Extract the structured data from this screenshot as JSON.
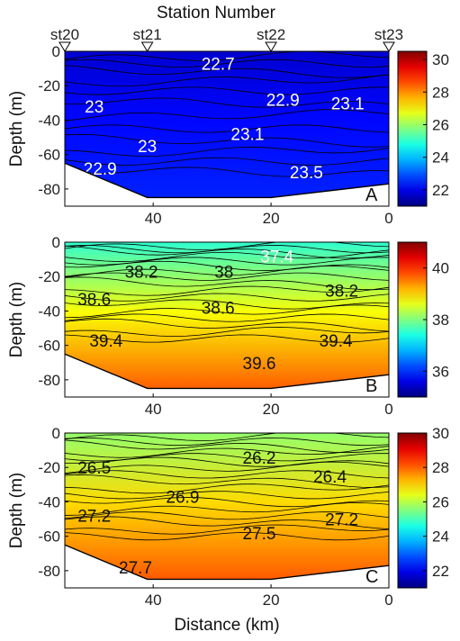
{
  "top_axis_label": "Station Number",
  "stations": [
    {
      "label": "st20",
      "distance": 55
    },
    {
      "label": "st21",
      "distance": 41
    },
    {
      "label": "st22",
      "distance": 20
    },
    {
      "label": "st23",
      "distance": 0
    }
  ],
  "xlabel": "Distance (km)",
  "chart_data": [
    {
      "type": "contour",
      "panel_label": "A",
      "ylabel": "Depth (m)",
      "xlim": [
        55,
        0
      ],
      "ylim": [
        -90,
        0
      ],
      "x_ticks": [
        40,
        20,
        0
      ],
      "y_ticks": [
        0,
        -20,
        -40,
        -60,
        -80
      ],
      "colorbar": {
        "min": 21,
        "max": 30.5,
        "ticks": [
          22,
          24,
          26,
          28,
          30
        ]
      },
      "bottom_profile": [
        [
          55,
          -65
        ],
        [
          41,
          -85
        ],
        [
          20,
          -85
        ],
        [
          0,
          -77
        ]
      ],
      "colorscale": "jet",
      "contour_labels": [
        {
          "text": "22.7",
          "x": 29,
          "y": -7,
          "color": "#ffffff"
        },
        {
          "text": "23",
          "x": 50,
          "y": -32,
          "color": "#ffffff"
        },
        {
          "text": "22.9",
          "x": 18,
          "y": -28,
          "color": "#ffffff"
        },
        {
          "text": "23.1",
          "x": 7,
          "y": -30,
          "color": "#ffffff"
        },
        {
          "text": "23.1",
          "x": 24,
          "y": -48,
          "color": "#ffffff"
        },
        {
          "text": "23",
          "x": 41,
          "y": -55,
          "color": "#ffffff"
        },
        {
          "text": "22.9",
          "x": 49,
          "y": -68,
          "color": "#ffffff"
        },
        {
          "text": "23.5",
          "x": 14,
          "y": -70,
          "color": "#ffffff"
        }
      ]
    },
    {
      "type": "contour",
      "panel_label": "B",
      "ylabel": "Depth (m)",
      "xlim": [
        55,
        0
      ],
      "ylim": [
        -90,
        0
      ],
      "x_ticks": [
        40,
        20,
        0
      ],
      "y_ticks": [
        0,
        -20,
        -40,
        -60,
        -80
      ],
      "colorbar": {
        "min": 35,
        "max": 41,
        "ticks": [
          36,
          38,
          40
        ]
      },
      "bottom_profile": [
        [
          55,
          -65
        ],
        [
          41,
          -85
        ],
        [
          20,
          -85
        ],
        [
          0,
          -77
        ]
      ],
      "colorscale": "jet",
      "contour_labels": [
        {
          "text": "37.4",
          "x": 19,
          "y": -8,
          "color": "#ffffff"
        },
        {
          "text": "38.2",
          "x": 42,
          "y": -17,
          "color": "#111111"
        },
        {
          "text": "38",
          "x": 28,
          "y": -17,
          "color": "#111111"
        },
        {
          "text": "38.2",
          "x": 8,
          "y": -28,
          "color": "#111111"
        },
        {
          "text": "38.6",
          "x": 50,
          "y": -33,
          "color": "#111111"
        },
        {
          "text": "38.6",
          "x": 29,
          "y": -38,
          "color": "#111111"
        },
        {
          "text": "39.4",
          "x": 48,
          "y": -57,
          "color": "#111111"
        },
        {
          "text": "39.4",
          "x": 9,
          "y": -57,
          "color": "#111111"
        },
        {
          "text": "39.6",
          "x": 22,
          "y": -70,
          "color": "#111111"
        }
      ]
    },
    {
      "type": "contour",
      "panel_label": "C",
      "ylabel": "Depth (m)",
      "xlim": [
        55,
        0
      ],
      "ylim": [
        -90,
        0
      ],
      "x_ticks": [
        40,
        20,
        0
      ],
      "y_ticks": [
        0,
        -20,
        -40,
        -60,
        -80
      ],
      "colorbar": {
        "min": 21,
        "max": 30,
        "ticks": [
          22,
          24,
          26,
          28,
          30
        ]
      },
      "bottom_profile": [
        [
          55,
          -65
        ],
        [
          41,
          -85
        ],
        [
          20,
          -85
        ],
        [
          0,
          -77
        ]
      ],
      "colorscale": "jet",
      "contour_labels": [
        {
          "text": "26.2",
          "x": 22,
          "y": -14,
          "color": "#111111"
        },
        {
          "text": "26.5",
          "x": 50,
          "y": -20,
          "color": "#111111"
        },
        {
          "text": "26.4",
          "x": 10,
          "y": -25,
          "color": "#111111"
        },
        {
          "text": "26.9",
          "x": 35,
          "y": -37,
          "color": "#111111"
        },
        {
          "text": "27.2",
          "x": 50,
          "y": -48,
          "color": "#111111"
        },
        {
          "text": "27.2",
          "x": 8,
          "y": -50,
          "color": "#111111"
        },
        {
          "text": "27.5",
          "x": 22,
          "y": -58,
          "color": "#111111"
        },
        {
          "text": "27.7",
          "x": 43,
          "y": -78,
          "color": "#111111"
        }
      ]
    }
  ]
}
